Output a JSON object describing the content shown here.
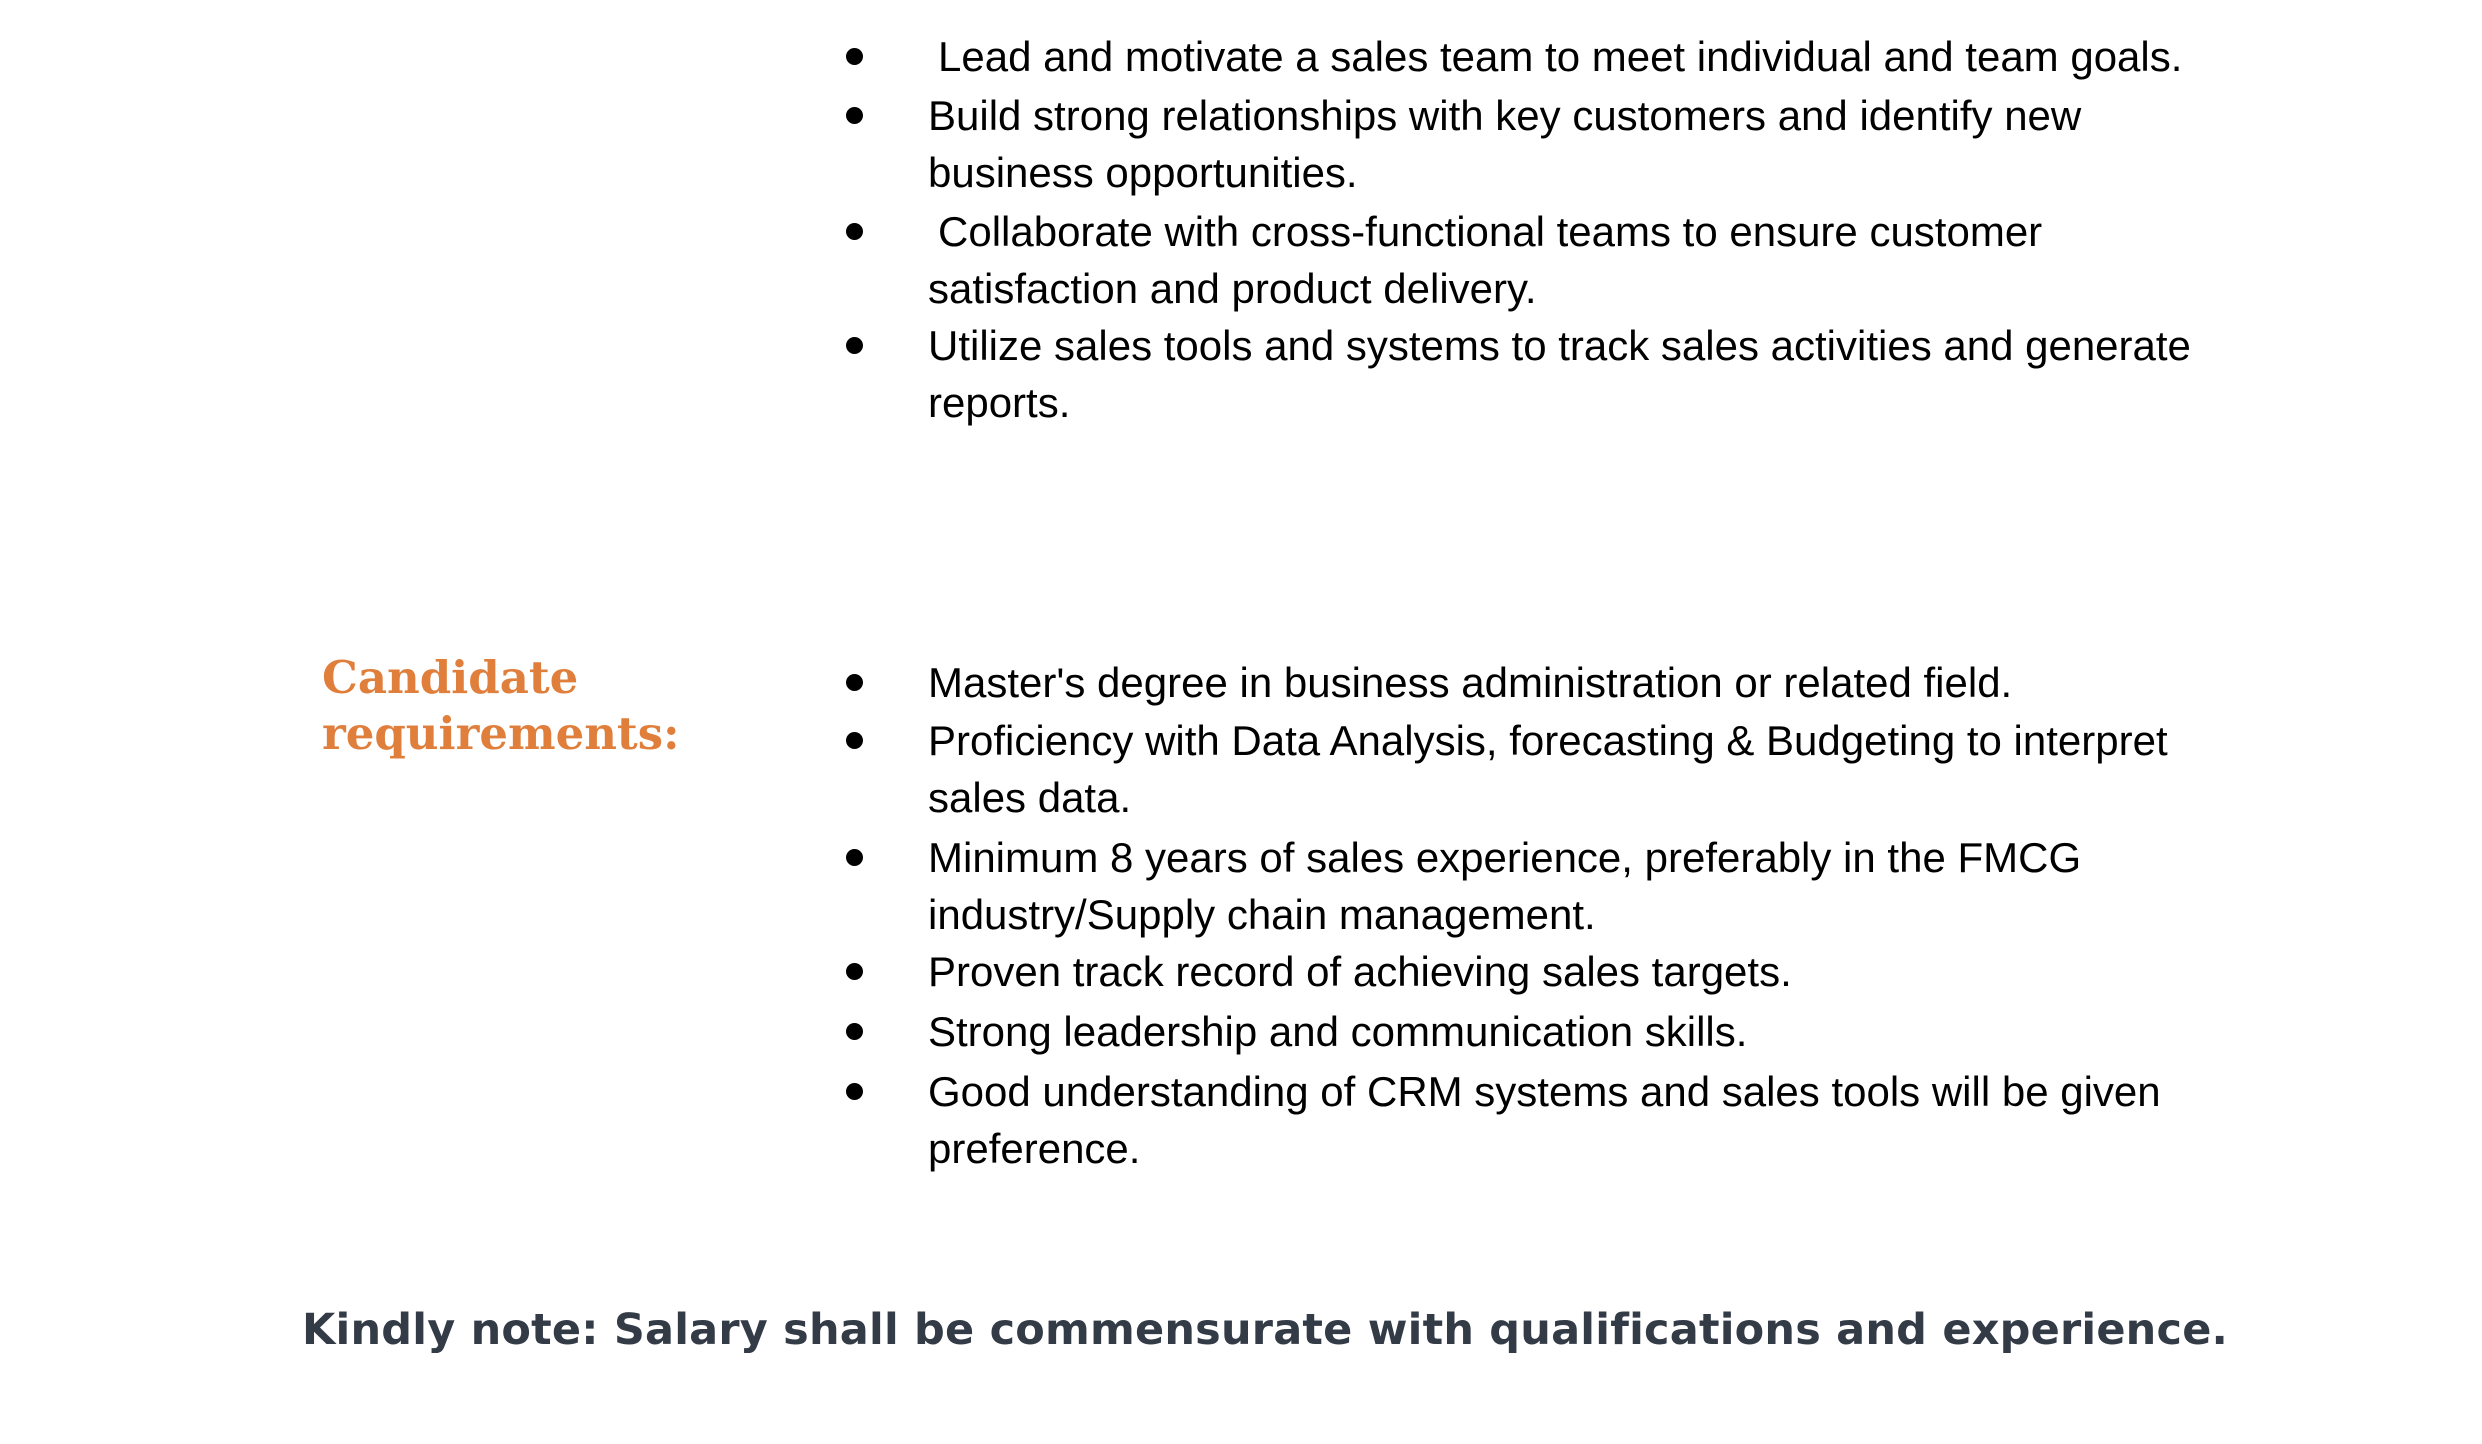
{
  "responsibilities": {
    "items": [
      {
        "text": "Lead and motivate a sales team to meet individual and team goals."
      },
      {
        "text": "Build strong relationships with key customers and identify new business opportunities."
      },
      {
        "text": "Collaborate with cross-functional teams to ensure customer satisfaction and product delivery."
      },
      {
        "text": "Utilize sales tools and systems to track sales activities and generate reports."
      }
    ]
  },
  "candidate_requirements": {
    "heading_line1": "Candidate",
    "heading_line2": "requirements:",
    "items": [
      {
        "text": "Master's degree in business administration or related field."
      },
      {
        "text": "Proficiency with Data Analysis, forecasting & Budgeting to interpret sales data."
      },
      {
        "text": "Minimum 8 years of sales experience, preferably in the FMCG industry/Supply chain management."
      },
      {
        "text": "Proven track record of achieving sales targets."
      },
      {
        "text": "Strong leadership and communication skills."
      },
      {
        "text": "Good understanding of CRM systems and sales tools will be given preference."
      }
    ]
  },
  "footer": {
    "note": "Kindly note: Salary shall be commensurate with qualifications and experience."
  },
  "colors": {
    "heading": "#e07f3c",
    "footer_text": "#333b47",
    "body_text": "#000000"
  }
}
